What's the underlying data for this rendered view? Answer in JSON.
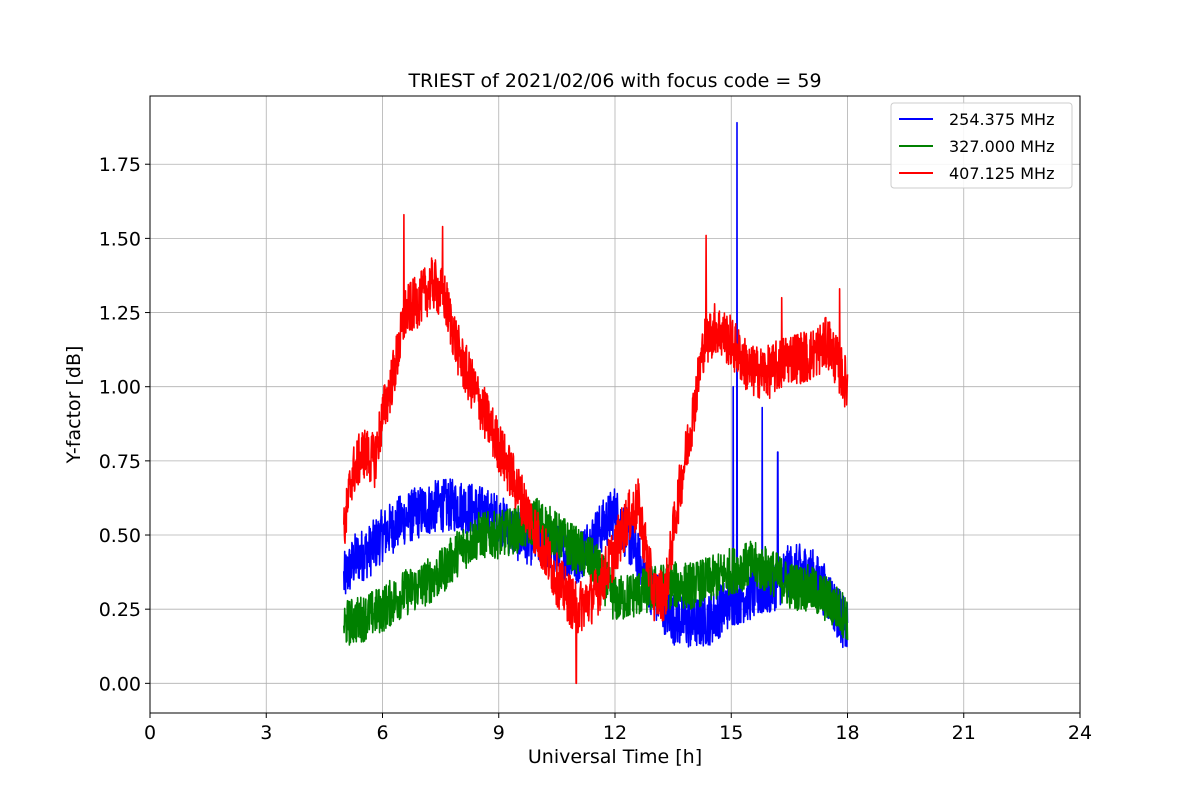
{
  "chart_data": {
    "type": "line",
    "title": "TRIEST of 2021/02/06 with focus code = 59",
    "xlabel": "Universal Time [h]",
    "ylabel": "Y-factor [dB]",
    "xlim": [
      0,
      24
    ],
    "ylim": [
      -0.1,
      1.98
    ],
    "x_ticks": [
      0,
      3,
      6,
      9,
      12,
      15,
      18,
      21,
      24
    ],
    "x_tick_labels": [
      "0",
      "3",
      "6",
      "9",
      "12",
      "15",
      "18",
      "21",
      "24"
    ],
    "y_ticks": [
      0.0,
      0.25,
      0.5,
      0.75,
      1.0,
      1.25,
      1.5,
      1.75
    ],
    "y_tick_labels": [
      "0.00",
      "0.25",
      "0.50",
      "0.75",
      "1.00",
      "1.25",
      "1.50",
      "1.75"
    ],
    "grid": true,
    "legend_position": "top-right",
    "series": [
      {
        "name": "254.375 MHz",
        "color": "#0000ff",
        "noise": 0.09,
        "x": [
          5.0,
          5.3,
          5.7,
          6.0,
          6.5,
          7.0,
          7.5,
          8.0,
          8.5,
          9.0,
          9.5,
          10.0,
          10.5,
          11.0,
          11.5,
          12.0,
          12.5,
          13.0,
          13.5,
          14.0,
          14.5,
          15.0,
          15.5,
          16.0,
          16.5,
          17.0,
          17.5,
          18.0
        ],
        "y": [
          0.35,
          0.42,
          0.45,
          0.5,
          0.55,
          0.58,
          0.6,
          0.6,
          0.58,
          0.55,
          0.5,
          0.48,
          0.45,
          0.42,
          0.5,
          0.58,
          0.45,
          0.3,
          0.22,
          0.2,
          0.22,
          0.28,
          0.3,
          0.32,
          0.38,
          0.38,
          0.3,
          0.18
        ],
        "spikes": [
          {
            "x": 15.15,
            "y": 1.89
          },
          {
            "x": 15.05,
            "y": 1.0
          },
          {
            "x": 15.8,
            "y": 0.93
          },
          {
            "x": 16.2,
            "y": 0.78
          }
        ]
      },
      {
        "name": "327.000 MHz",
        "color": "#008000",
        "noise": 0.08,
        "x": [
          5.0,
          5.5,
          6.0,
          6.5,
          7.0,
          7.5,
          8.0,
          8.5,
          9.0,
          9.5,
          10.0,
          10.5,
          11.0,
          11.5,
          12.0,
          12.5,
          13.0,
          13.5,
          14.0,
          14.5,
          15.0,
          15.5,
          16.0,
          16.5,
          17.0,
          17.5,
          18.0
        ],
        "y": [
          0.2,
          0.22,
          0.25,
          0.3,
          0.33,
          0.37,
          0.45,
          0.5,
          0.5,
          0.52,
          0.55,
          0.5,
          0.45,
          0.4,
          0.28,
          0.3,
          0.32,
          0.33,
          0.33,
          0.35,
          0.38,
          0.4,
          0.38,
          0.33,
          0.32,
          0.28,
          0.22
        ]
      },
      {
        "name": "407.125 MHz",
        "color": "#ff0000",
        "noise": 0.09,
        "x": [
          5.0,
          5.2,
          5.5,
          5.8,
          6.0,
          6.3,
          6.6,
          7.0,
          7.3,
          7.6,
          8.0,
          8.5,
          9.0,
          9.5,
          10.0,
          10.5,
          11.0,
          11.5,
          12.0,
          12.3,
          12.6,
          13.0,
          13.3,
          13.6,
          14.0,
          14.3,
          14.6,
          15.0,
          15.5,
          16.0,
          16.5,
          17.0,
          17.5,
          18.0
        ],
        "y": [
          0.5,
          0.7,
          0.78,
          0.75,
          0.9,
          1.05,
          1.25,
          1.3,
          1.35,
          1.3,
          1.1,
          0.95,
          0.8,
          0.65,
          0.5,
          0.35,
          0.25,
          0.3,
          0.45,
          0.55,
          0.6,
          0.3,
          0.3,
          0.6,
          0.9,
          1.15,
          1.2,
          1.15,
          1.05,
          1.05,
          1.1,
          1.1,
          1.15,
          1.0
        ],
        "spikes": [
          {
            "x": 6.55,
            "y": 1.58
          },
          {
            "x": 7.55,
            "y": 1.54
          },
          {
            "x": 11.0,
            "y": 0.0
          },
          {
            "x": 14.35,
            "y": 1.51
          },
          {
            "x": 16.3,
            "y": 1.3
          },
          {
            "x": 17.8,
            "y": 1.33
          }
        ]
      }
    ]
  }
}
